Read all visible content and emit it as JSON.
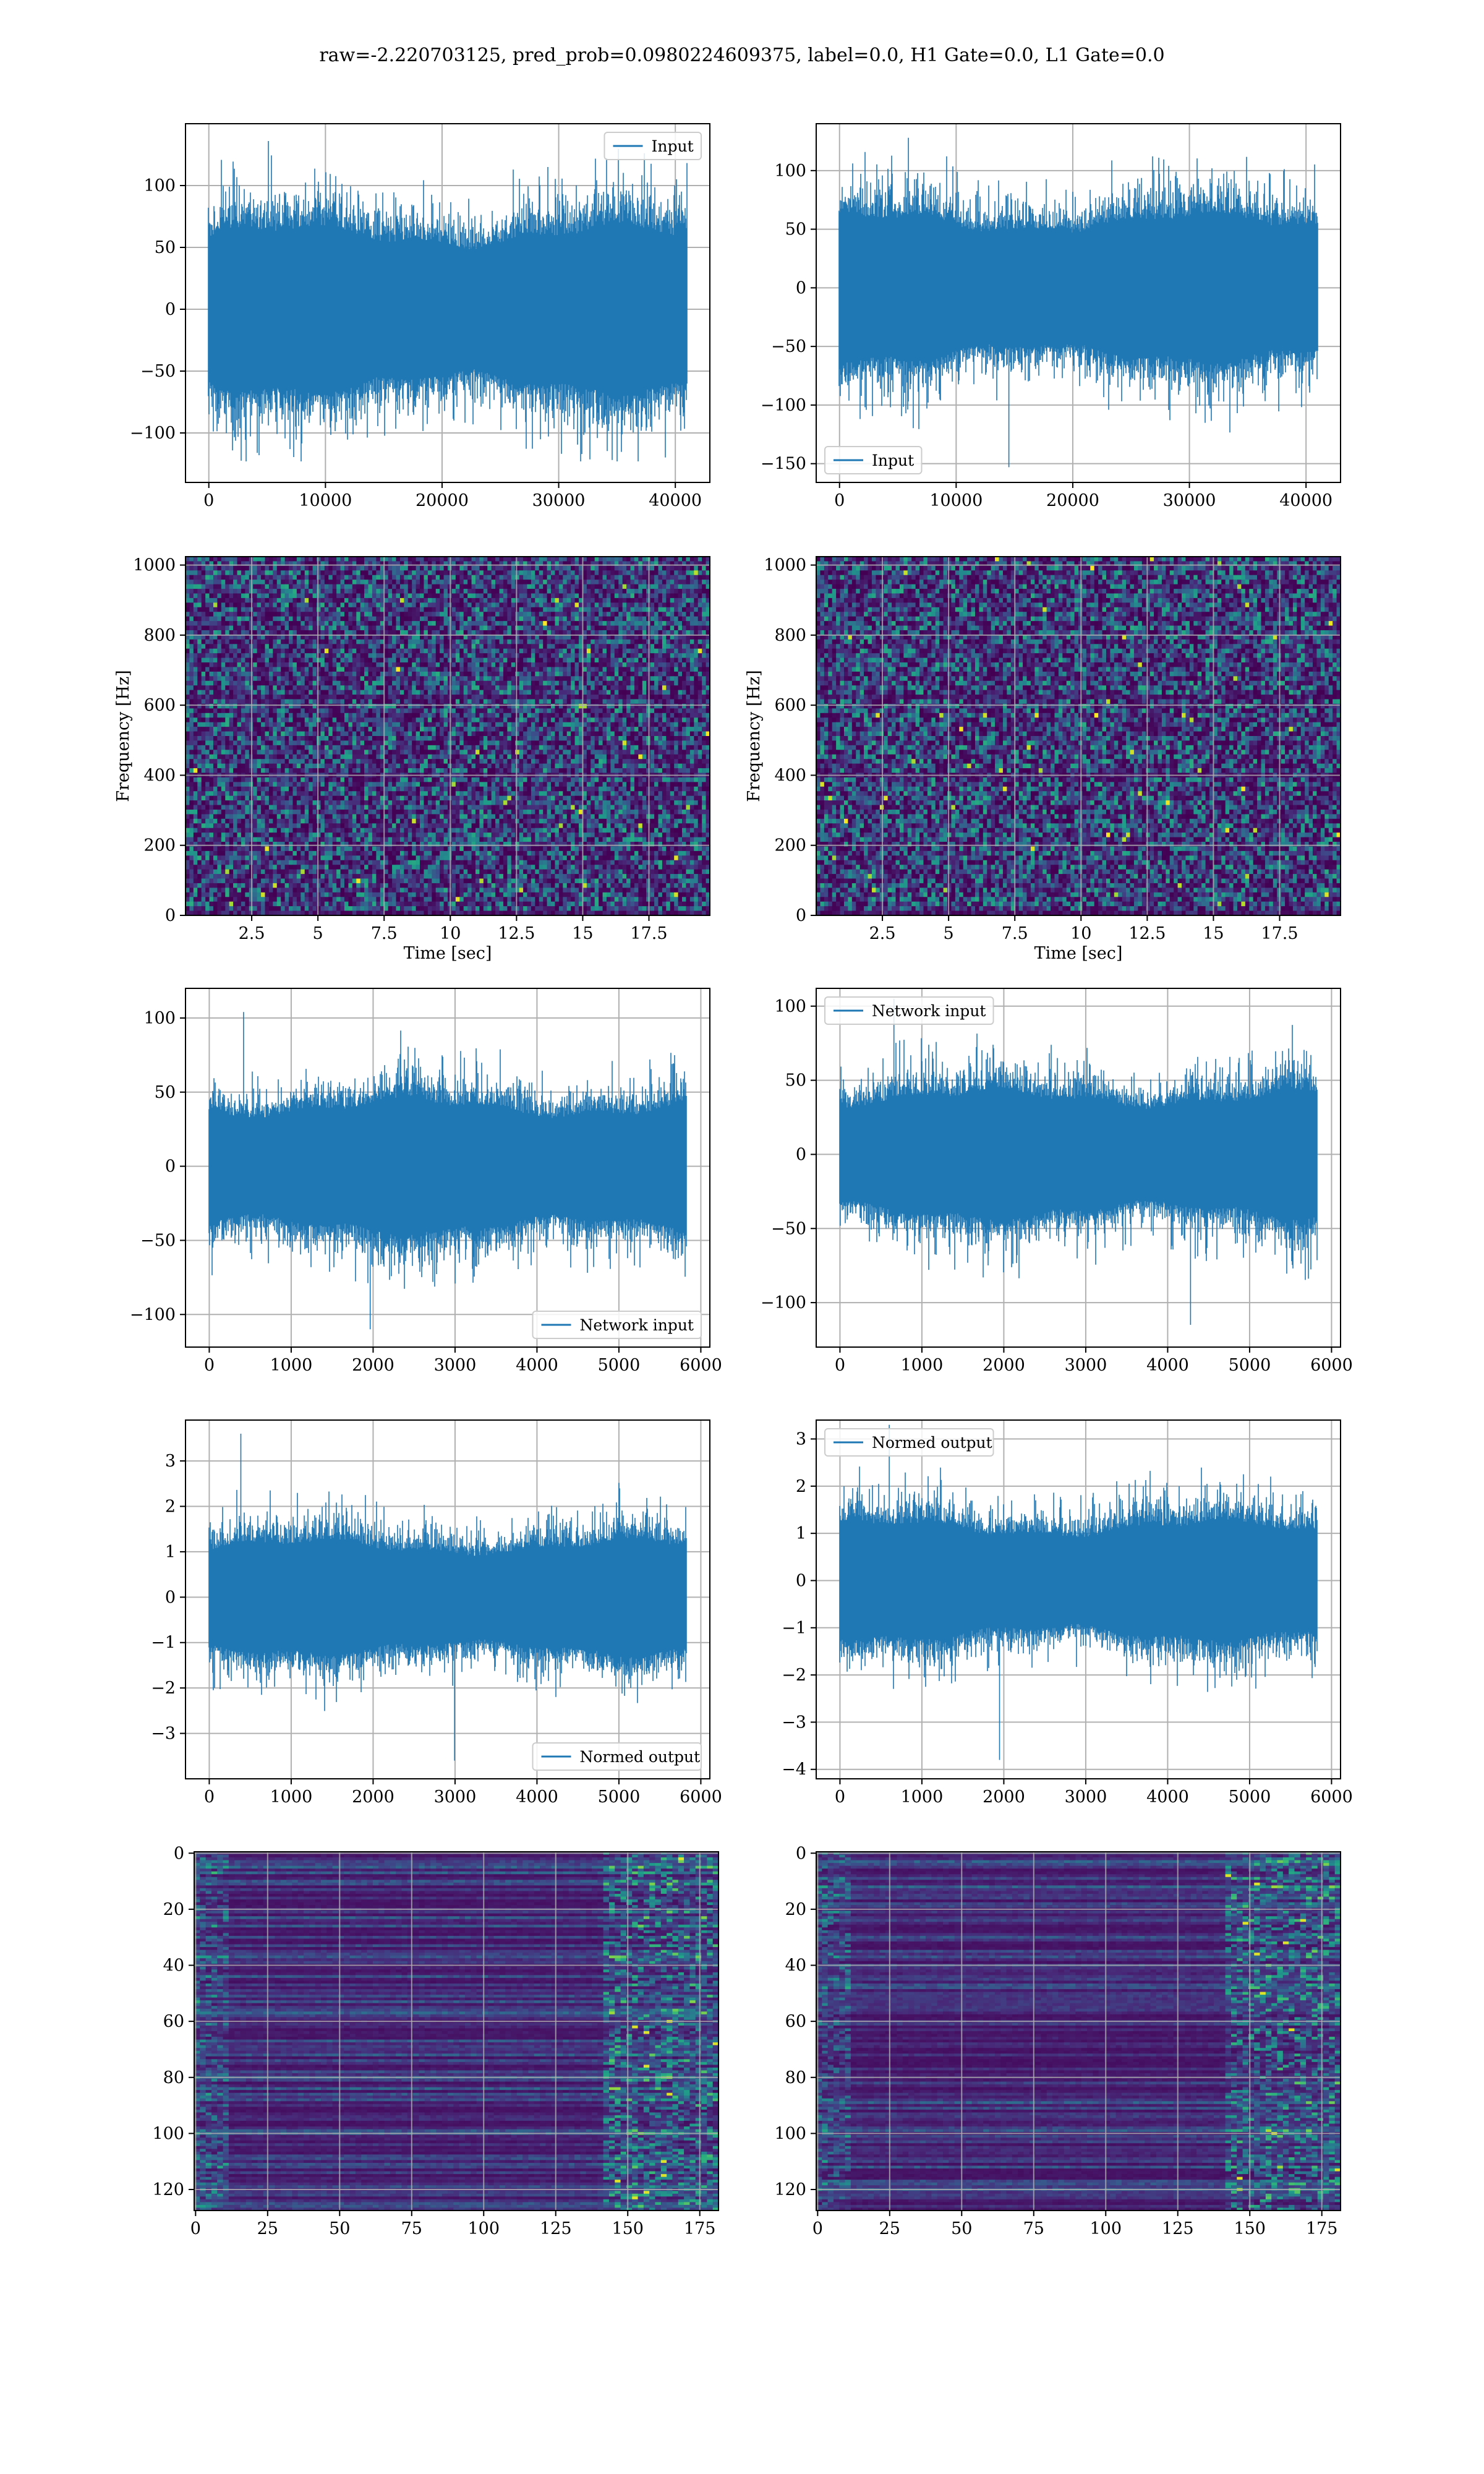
{
  "figure": {
    "title": "raw=-2.220703125, pred_prob=0.0980224609375, label=0.0, H1 Gate=0.0, L1 Gate=0.0"
  },
  "colors": {
    "line": "#1f77b4",
    "grid": "#b0b0b0",
    "spine": "#000000",
    "viridis": [
      "#440154",
      "#482878",
      "#3e4989",
      "#31688e",
      "#26828e",
      "#1f9e89",
      "#35b779",
      "#6ece58",
      "#b5de2b",
      "#fde725"
    ]
  },
  "chart_data": [
    {
      "id": "input-h1",
      "type": "line",
      "legend_loc": "upper right",
      "series": [
        {
          "name": "Input",
          "summary": {
            "n_points": 40960,
            "x_range": [
              0,
              40960
            ],
            "typical_abs_envelope": 75,
            "min": -123,
            "max": 136
          }
        }
      ],
      "xlim": [
        -2000,
        42960
      ],
      "ylim": [
        -140,
        150
      ],
      "xticks": [
        0,
        10000,
        20000,
        30000,
        40000
      ],
      "yticks": [
        -100,
        -50,
        0,
        50,
        100
      ],
      "xlabel": "",
      "ylabel": "",
      "grid": true
    },
    {
      "id": "input-l1",
      "type": "line",
      "legend_loc": "lower left",
      "series": [
        {
          "name": "Input",
          "summary": {
            "n_points": 40960,
            "x_range": [
              0,
              40960
            ],
            "typical_abs_envelope": 70,
            "min": -153,
            "max": 128
          }
        }
      ],
      "xlim": [
        -2000,
        42960
      ],
      "ylim": [
        -166,
        140
      ],
      "xticks": [
        0,
        10000,
        20000,
        30000,
        40000
      ],
      "yticks": [
        -150,
        -100,
        -50,
        0,
        50,
        100
      ],
      "xlabel": "",
      "ylabel": "",
      "grid": true
    },
    {
      "id": "spectrogram-h1",
      "type": "heatmap",
      "colormap": "viridis",
      "xlabel": "Time [sec]",
      "ylabel": "Frequency [Hz]",
      "xlim": [
        0,
        19.8
      ],
      "ylim": [
        0,
        1024
      ],
      "xticks": [
        2.5,
        5.0,
        7.5,
        10.0,
        12.5,
        15.0,
        17.5
      ],
      "yticks": [
        0,
        200,
        400,
        600,
        800,
        1000
      ],
      "grid": true
    },
    {
      "id": "spectrogram-l1",
      "type": "heatmap",
      "colormap": "viridis",
      "xlabel": "Time [sec]",
      "ylabel": "Frequency [Hz]",
      "xlim": [
        0,
        19.8
      ],
      "ylim": [
        0,
        1024
      ],
      "xticks": [
        2.5,
        5.0,
        7.5,
        10.0,
        12.5,
        15.0,
        17.5
      ],
      "yticks": [
        0,
        200,
        400,
        600,
        800,
        1000
      ],
      "grid": true
    },
    {
      "id": "network-input-h1",
      "type": "line",
      "legend_loc": "lower right",
      "series": [
        {
          "name": "Network input",
          "summary": {
            "n_points": 5820,
            "x_range": [
              0,
              5820
            ],
            "typical_abs_envelope": 50,
            "min": -110,
            "max": 104
          }
        }
      ],
      "xlim": [
        -290,
        6110
      ],
      "ylim": [
        -122,
        120
      ],
      "xticks": [
        0,
        1000,
        2000,
        3000,
        4000,
        5000,
        6000
      ],
      "yticks": [
        -100,
        -50,
        0,
        50,
        100
      ],
      "xlabel": "",
      "ylabel": "",
      "grid": true
    },
    {
      "id": "network-input-l1",
      "type": "line",
      "legend_loc": "upper left",
      "series": [
        {
          "name": "Network input",
          "summary": {
            "n_points": 5820,
            "x_range": [
              0,
              5820
            ],
            "typical_abs_envelope": 48,
            "min": -115,
            "max": 105
          }
        }
      ],
      "xlim": [
        -290,
        6110
      ],
      "ylim": [
        -130,
        112
      ],
      "xticks": [
        0,
        1000,
        2000,
        3000,
        4000,
        5000,
        6000
      ],
      "yticks": [
        -100,
        -50,
        0,
        50,
        100
      ],
      "xlabel": "",
      "ylabel": "",
      "grid": true
    },
    {
      "id": "normed-output-h1",
      "type": "line",
      "legend_loc": "lower right",
      "series": [
        {
          "name": "Normed output",
          "summary": {
            "n_points": 5820,
            "x_range": [
              0,
              5820
            ],
            "typical_abs_envelope": 1.4,
            "min": -3.6,
            "max": 3.6
          }
        }
      ],
      "xlim": [
        -290,
        6110
      ],
      "ylim": [
        -4.0,
        3.9
      ],
      "xticks": [
        0,
        1000,
        2000,
        3000,
        4000,
        5000,
        6000
      ],
      "yticks": [
        -3,
        -2,
        -1,
        0,
        1,
        2,
        3
      ],
      "xlabel": "",
      "ylabel": "",
      "grid": true
    },
    {
      "id": "normed-output-l1",
      "type": "line",
      "legend_loc": "upper left",
      "series": [
        {
          "name": "Normed output",
          "summary": {
            "n_points": 5820,
            "x_range": [
              0,
              5820
            ],
            "typical_abs_envelope": 1.4,
            "min": -3.8,
            "max": 3.3
          }
        }
      ],
      "xlim": [
        -290,
        6110
      ],
      "ylim": [
        -4.2,
        3.4
      ],
      "xticks": [
        0,
        1000,
        2000,
        3000,
        4000,
        5000,
        6000
      ],
      "yticks": [
        -4,
        -3,
        -2,
        -1,
        0,
        1,
        2,
        3
      ],
      "xlabel": "",
      "ylabel": "",
      "grid": true
    },
    {
      "id": "feature-map-h1",
      "type": "heatmap",
      "colormap": "viridis",
      "y_inverted": true,
      "xlim": [
        -0.5,
        181.5
      ],
      "ylim": [
        127.5,
        -0.5
      ],
      "xticks": [
        0,
        25,
        50,
        75,
        100,
        125,
        150,
        175
      ],
      "yticks": [
        0,
        20,
        40,
        60,
        80,
        100,
        120
      ],
      "xlabel": "",
      "ylabel": "",
      "grid": true
    },
    {
      "id": "feature-map-l1",
      "type": "heatmap",
      "colormap": "viridis",
      "y_inverted": true,
      "xlim": [
        -0.5,
        181.5
      ],
      "ylim": [
        127.5,
        -0.5
      ],
      "xticks": [
        0,
        25,
        50,
        75,
        100,
        125,
        150,
        175
      ],
      "yticks": [
        0,
        20,
        40,
        60,
        80,
        100,
        120
      ],
      "xlabel": "",
      "ylabel": "",
      "grid": true
    }
  ]
}
